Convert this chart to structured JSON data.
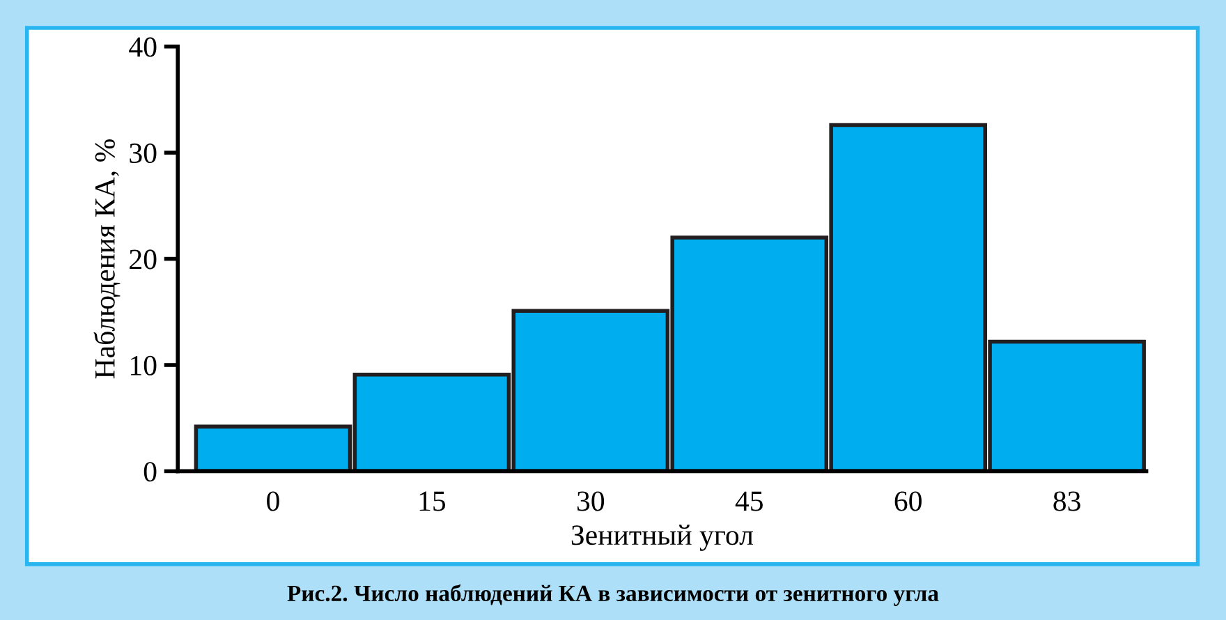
{
  "chart_data": {
    "type": "bar",
    "categories": [
      "0",
      "15",
      "30",
      "45",
      "60",
      "83"
    ],
    "values": [
      4.2,
      9.1,
      15.1,
      22.0,
      32.6,
      12.2
    ],
    "color": "#00aeef",
    "xlabel": "Зенитный угол",
    "ylabel": "Наблюдения КА, %",
    "ylim": [
      0,
      40
    ],
    "yticks": [
      0,
      10,
      20,
      30,
      40
    ],
    "grid": false,
    "legend": false,
    "annotations": [
      "Рис.2. Число наблюдений КА в зависимости от зенитного угла"
    ]
  }
}
